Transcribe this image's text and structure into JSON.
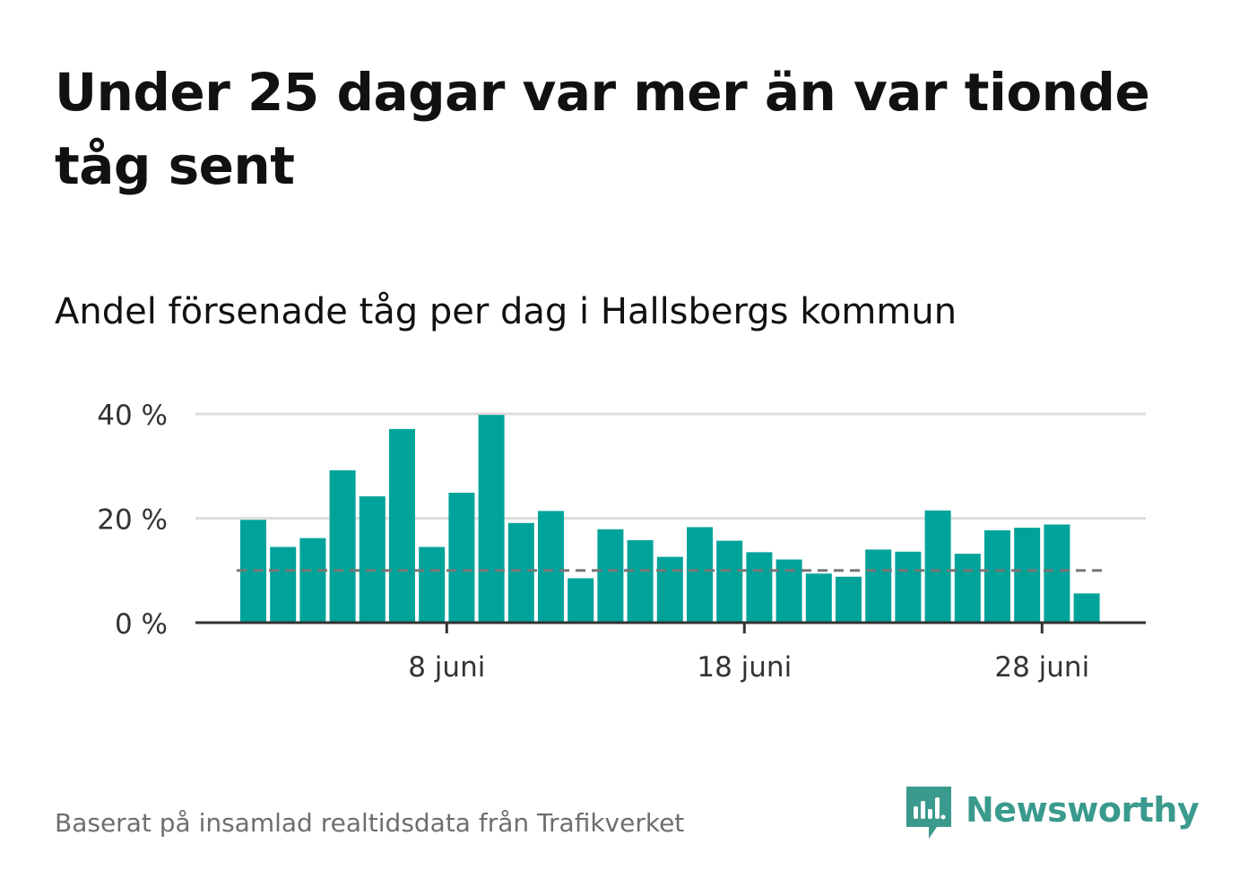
{
  "title": "Under 25 dagar var mer än var tionde tåg sent",
  "subtitle": "Andel försenade tåg per dag i Hallsbergs kommun",
  "footer": {
    "source": "Baserat på insamlad realtidsdata från Trafikverket",
    "brand": "Newsworthy",
    "brand_icon": "newsworthy-logo-icon"
  },
  "colors": {
    "bar": "#00a39a",
    "reference_line": "#777777",
    "grid": "#dddddd",
    "axis": "#333333",
    "brand": "#3a9a8d"
  },
  "chart_data": {
    "type": "bar",
    "title": "Andel försenade tåg per dag i Hallsbergs kommun",
    "xlabel": "",
    "ylabel": "",
    "x": [
      "2020-06-01",
      "2020-06-02",
      "2020-06-03",
      "2020-06-04",
      "2020-06-05",
      "2020-06-06",
      "2020-06-07",
      "2020-06-08",
      "2020-06-09",
      "2020-06-10",
      "2020-06-11",
      "2020-06-12",
      "2020-06-13",
      "2020-06-14",
      "2020-06-15",
      "2020-06-16",
      "2020-06-17",
      "2020-06-18",
      "2020-06-19",
      "2020-06-20",
      "2020-06-21",
      "2020-06-22",
      "2020-06-23",
      "2020-06-24",
      "2020-06-25",
      "2020-06-26",
      "2020-06-27",
      "2020-06-28",
      "2020-06-29"
    ],
    "values": [
      19.7,
      14.5,
      16.2,
      29.2,
      24.2,
      37.1,
      14.5,
      24.9,
      39.8,
      19.1,
      21.4,
      8.5,
      17.9,
      15.8,
      12.6,
      18.3,
      15.7,
      13.5,
      12.1,
      9.4,
      8.8,
      14.0,
      13.6,
      21.5,
      13.2,
      17.7,
      18.2,
      18.8,
      5.6
    ],
    "reference_line": 10,
    "ylim": [
      0,
      40
    ],
    "yticks": [
      0,
      20,
      40
    ],
    "ytick_labels": [
      "0 %",
      "20 %",
      "40 %"
    ],
    "xticks": [
      "2020-06-08",
      "2020-06-18",
      "2020-06-28"
    ],
    "xtick_labels": [
      "8 juni",
      "18 juni",
      "28 juni"
    ],
    "grid": true
  }
}
